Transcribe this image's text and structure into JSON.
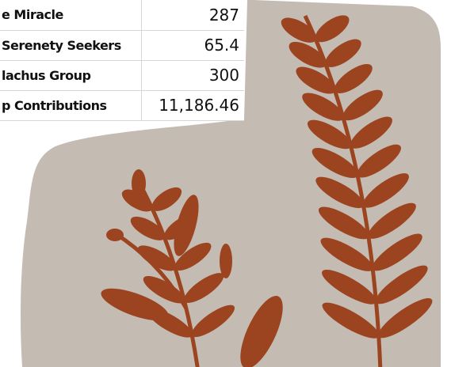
{
  "table": {
    "rows": [
      [
        "e Miracle",
        "287"
      ],
      [
        "Serenety Seekers",
        "65.4"
      ],
      [
        "lachus Group",
        "300"
      ],
      [
        "p Contributions",
        "11,186.46"
      ]
    ]
  }
}
